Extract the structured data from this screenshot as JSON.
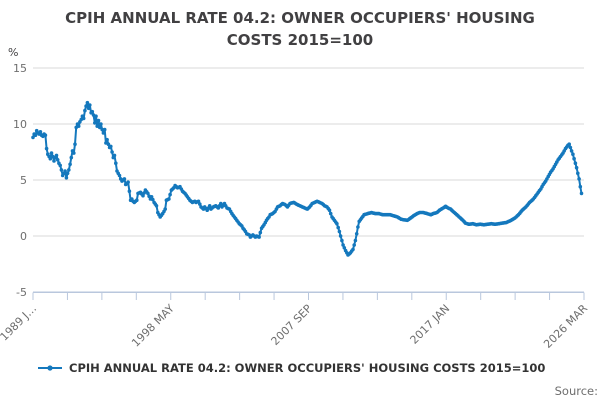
{
  "title": "CPIH ANNUAL RATE 04.2: OWNER OCCUPIERS' HOUSING COSTS 2015=100",
  "y_axis_unit_label": "%",
  "legend": {
    "label": "CPIH ANNUAL RATE 04.2: OWNER OCCUPIERS' HOUSING COSTS 2015=100"
  },
  "source_label": "Source:",
  "colors": {
    "series": "#1478bd",
    "gridline": "#d9d9d9",
    "axis": "#b9c7dd",
    "title_text": "#414042",
    "tick_text": "#6e6e6e",
    "legend_text": "#333333"
  },
  "chart_data": {
    "type": "line",
    "title": "CPIH ANNUAL RATE 04.2: OWNER OCCUPIERS' HOUSING COSTS 2015=100",
    "xlabel": "",
    "ylabel": "%",
    "ylim": [
      -5,
      15
    ],
    "yticks": [
      15,
      10,
      5,
      0,
      -5
    ],
    "grid": "horizontal",
    "legend_position": "bottom-left",
    "x_domain_months": [
      "1989-01",
      "2026-03"
    ],
    "x_tick_count": 17,
    "x_labeled_tick_indices": [
      0,
      4,
      8,
      12,
      16
    ],
    "xtick_labels": [
      "1989 J…",
      "1998 MAY",
      "2007 SEP",
      "2017 JAN",
      "2026 MAR"
    ],
    "series": [
      {
        "name": "CPIH ANNUAL RATE 04.2: OWNER OCCUPIERS' HOUSING COSTS 2015=100",
        "frequency": "monthly",
        "points": [
          [
            "1989-01",
            8.8
          ],
          [
            "1989-02",
            9.1
          ],
          [
            "1989-03",
            9.0
          ],
          [
            "1989-04",
            9.4
          ],
          [
            "1989-05",
            9.2
          ],
          [
            "1989-06",
            9.1
          ],
          [
            "1989-07",
            9.3
          ],
          [
            "1989-08",
            9.0
          ],
          [
            "1989-09",
            8.9
          ],
          [
            "1989-10",
            9.1
          ],
          [
            "1989-11",
            9.0
          ],
          [
            "1989-12",
            7.8
          ],
          [
            "1990-01",
            7.3
          ],
          [
            "1990-02",
            7.1
          ],
          [
            "1990-03",
            6.9
          ],
          [
            "1990-04",
            7.4
          ],
          [
            "1990-05",
            7.1
          ],
          [
            "1990-06",
            6.7
          ],
          [
            "1990-07",
            7.0
          ],
          [
            "1990-08",
            7.2
          ],
          [
            "1990-09",
            6.8
          ],
          [
            "1990-10",
            6.5
          ],
          [
            "1990-11",
            6.3
          ],
          [
            "1990-12",
            5.9
          ],
          [
            "1991-01",
            5.4
          ],
          [
            "1991-02",
            5.6
          ],
          [
            "1991-03",
            5.8
          ],
          [
            "1991-04",
            5.2
          ],
          [
            "1991-05",
            5.6
          ],
          [
            "1991-06",
            5.9
          ],
          [
            "1991-07",
            6.4
          ],
          [
            "1991-08",
            7.0
          ],
          [
            "1991-09",
            7.6
          ],
          [
            "1991-10",
            7.4
          ],
          [
            "1991-11",
            8.2
          ],
          [
            "1991-12",
            9.7
          ],
          [
            "1992-01",
            10.0
          ],
          [
            "1992-02",
            9.8
          ],
          [
            "1992-03",
            10.2
          ],
          [
            "1992-04",
            10.4
          ],
          [
            "1992-05",
            10.7
          ],
          [
            "1992-06",
            10.5
          ],
          [
            "1992-07",
            11.2
          ],
          [
            "1992-08",
            11.6
          ],
          [
            "1992-09",
            11.9
          ],
          [
            "1992-10",
            11.4
          ],
          [
            "1992-11",
            11.7
          ],
          [
            "1992-12",
            11.0
          ],
          [
            "1993-01",
            11.1
          ],
          [
            "1993-02",
            10.8
          ],
          [
            "1993-03",
            10.1
          ],
          [
            "1993-04",
            10.7
          ],
          [
            "1993-05",
            9.8
          ],
          [
            "1993-06",
            10.3
          ],
          [
            "1993-07",
            9.7
          ],
          [
            "1993-08",
            10.0
          ],
          [
            "1993-09",
            9.5
          ],
          [
            "1993-10",
            9.2
          ],
          [
            "1993-11",
            9.5
          ],
          [
            "1993-12",
            8.3
          ],
          [
            "1994-01",
            8.6
          ],
          [
            "1994-02",
            8.2
          ],
          [
            "1994-03",
            7.9
          ],
          [
            "1994-04",
            8.0
          ],
          [
            "1994-05",
            7.5
          ],
          [
            "1994-06",
            7.0
          ],
          [
            "1994-07",
            7.2
          ],
          [
            "1994-08",
            6.5
          ],
          [
            "1994-09",
            5.8
          ],
          [
            "1994-10",
            5.6
          ],
          [
            "1994-11",
            5.4
          ],
          [
            "1994-12",
            5.1
          ],
          [
            "1995-01",
            4.9
          ],
          [
            "1995-02",
            5.0
          ],
          [
            "1995-03",
            5.1
          ],
          [
            "1995-04",
            4.6
          ],
          [
            "1995-05",
            4.7
          ],
          [
            "1995-06",
            4.8
          ],
          [
            "1995-07",
            4.0
          ],
          [
            "1995-08",
            3.2
          ],
          [
            "1995-09",
            3.3
          ],
          [
            "1995-10",
            3.1
          ],
          [
            "1995-11",
            3.0
          ],
          [
            "1995-12",
            3.1
          ],
          [
            "1996-01",
            3.2
          ],
          [
            "1996-02",
            3.8
          ],
          [
            "1996-04",
            3.9
          ],
          [
            "1996-06",
            3.6
          ],
          [
            "1996-08",
            4.1
          ],
          [
            "1996-10",
            3.8
          ],
          [
            "1996-12",
            3.3
          ],
          [
            "1997-01",
            3.5
          ],
          [
            "1997-03",
            3.0
          ],
          [
            "1997-05",
            2.7
          ],
          [
            "1997-06",
            2.1
          ],
          [
            "1997-08",
            1.7
          ],
          [
            "1997-10",
            2.0
          ],
          [
            "1997-12",
            2.4
          ],
          [
            "1998-01",
            3.2
          ],
          [
            "1998-03",
            3.3
          ],
          [
            "1998-05",
            4.1
          ],
          [
            "1998-07",
            4.3
          ],
          [
            "1998-08",
            4.5
          ],
          [
            "1998-10",
            4.3
          ],
          [
            "1998-12",
            4.4
          ],
          [
            "1999-01",
            4.2
          ],
          [
            "1999-02",
            4.0
          ],
          [
            "1999-04",
            3.8
          ],
          [
            "1999-06",
            3.5
          ],
          [
            "1999-08",
            3.2
          ],
          [
            "1999-10",
            3.0
          ],
          [
            "1999-12",
            3.1
          ],
          [
            "2000-01",
            3.0
          ],
          [
            "2000-03",
            3.1
          ],
          [
            "2000-05",
            2.6
          ],
          [
            "2000-07",
            2.4
          ],
          [
            "2000-08",
            2.6
          ],
          [
            "2000-10",
            2.3
          ],
          [
            "2000-12",
            2.7
          ],
          [
            "2001-01",
            2.4
          ],
          [
            "2001-03",
            2.6
          ],
          [
            "2001-05",
            2.7
          ],
          [
            "2001-07",
            2.5
          ],
          [
            "2001-09",
            2.9
          ],
          [
            "2001-10",
            2.6
          ],
          [
            "2001-12",
            2.9
          ],
          [
            "2002-02",
            2.5
          ],
          [
            "2002-04",
            2.4
          ],
          [
            "2002-06",
            2.0
          ],
          [
            "2002-08",
            1.7
          ],
          [
            "2002-10",
            1.4
          ],
          [
            "2002-12",
            1.1
          ],
          [
            "2003-02",
            0.9
          ],
          [
            "2003-03",
            0.7
          ],
          [
            "2003-05",
            0.4
          ],
          [
            "2003-06",
            0.2
          ],
          [
            "2003-08",
            0.1
          ],
          [
            "2003-09",
            -0.1
          ],
          [
            "2003-11",
            0.1
          ],
          [
            "2004-01",
            -0.1
          ],
          [
            "2004-02",
            0.0
          ],
          [
            "2004-04",
            -0.1
          ],
          [
            "2004-06",
            0.7
          ],
          [
            "2004-08",
            1.0
          ],
          [
            "2004-10",
            1.4
          ],
          [
            "2004-12",
            1.7
          ],
          [
            "2005-01",
            1.9
          ],
          [
            "2005-03",
            2.0
          ],
          [
            "2005-05",
            2.2
          ],
          [
            "2005-07",
            2.6
          ],
          [
            "2005-09",
            2.7
          ],
          [
            "2005-11",
            2.9
          ],
          [
            "2006-01",
            2.8
          ],
          [
            "2006-03",
            2.6
          ],
          [
            "2006-05",
            2.9
          ],
          [
            "2006-08",
            3.0
          ],
          [
            "2006-11",
            2.8
          ],
          [
            "2007-01",
            2.7
          ],
          [
            "2007-03",
            2.6
          ],
          [
            "2007-05",
            2.5
          ],
          [
            "2007-07",
            2.4
          ],
          [
            "2007-09",
            2.6
          ],
          [
            "2007-11",
            2.9
          ],
          [
            "2008-01",
            3.0
          ],
          [
            "2008-03",
            3.1
          ],
          [
            "2008-05",
            3.0
          ],
          [
            "2008-07",
            2.9
          ],
          [
            "2008-09",
            2.7
          ],
          [
            "2008-11",
            2.6
          ],
          [
            "2009-01",
            2.3
          ],
          [
            "2009-03",
            1.7
          ],
          [
            "2009-05",
            1.4
          ],
          [
            "2009-07",
            1.1
          ],
          [
            "2009-09",
            0.4
          ],
          [
            "2009-11",
            -0.4
          ],
          [
            "2009-12",
            -0.8
          ],
          [
            "2010-02",
            -1.3
          ],
          [
            "2010-04",
            -1.7
          ],
          [
            "2010-06",
            -1.5
          ],
          [
            "2010-08",
            -1.2
          ],
          [
            "2010-09",
            -0.8
          ],
          [
            "2010-10",
            -0.4
          ],
          [
            "2010-12",
            0.8
          ],
          [
            "2011-01",
            1.3
          ],
          [
            "2011-03",
            1.6
          ],
          [
            "2011-05",
            1.9
          ],
          [
            "2011-08",
            2.0
          ],
          [
            "2011-11",
            2.1
          ],
          [
            "2012-02",
            2.0
          ],
          [
            "2012-05",
            2.0
          ],
          [
            "2012-08",
            1.9
          ],
          [
            "2012-11",
            1.9
          ],
          [
            "2013-02",
            1.9
          ],
          [
            "2013-05",
            1.8
          ],
          [
            "2013-08",
            1.7
          ],
          [
            "2013-11",
            1.5
          ],
          [
            "2014-01",
            1.45
          ],
          [
            "2014-04",
            1.4
          ],
          [
            "2014-06",
            1.55
          ],
          [
            "2014-09",
            1.8
          ],
          [
            "2014-12",
            2.0
          ],
          [
            "2015-02",
            2.1
          ],
          [
            "2015-05",
            2.1
          ],
          [
            "2015-08",
            2.0
          ],
          [
            "2015-11",
            1.9
          ],
          [
            "2016-01",
            2.0
          ],
          [
            "2016-04",
            2.1
          ],
          [
            "2016-06",
            2.3
          ],
          [
            "2016-09",
            2.5
          ],
          [
            "2016-11",
            2.65
          ],
          [
            "2017-01",
            2.5
          ],
          [
            "2017-03",
            2.4
          ],
          [
            "2017-05",
            2.2
          ],
          [
            "2017-07",
            2.0
          ],
          [
            "2017-09",
            1.8
          ],
          [
            "2017-11",
            1.6
          ],
          [
            "2018-01",
            1.4
          ],
          [
            "2018-03",
            1.15
          ],
          [
            "2018-06",
            1.05
          ],
          [
            "2018-09",
            1.1
          ],
          [
            "2018-12",
            1.0
          ],
          [
            "2019-03",
            1.05
          ],
          [
            "2019-06",
            1.0
          ],
          [
            "2019-09",
            1.05
          ],
          [
            "2019-12",
            1.1
          ],
          [
            "2020-03",
            1.05
          ],
          [
            "2020-06",
            1.1
          ],
          [
            "2020-09",
            1.15
          ],
          [
            "2020-12",
            1.2
          ],
          [
            "2021-02",
            1.3
          ],
          [
            "2021-04",
            1.4
          ],
          [
            "2021-07",
            1.6
          ],
          [
            "2021-10",
            1.9
          ],
          [
            "2022-01",
            2.3
          ],
          [
            "2022-04",
            2.6
          ],
          [
            "2022-07",
            3.0
          ],
          [
            "2022-10",
            3.3
          ],
          [
            "2022-12",
            3.6
          ],
          [
            "2023-02",
            3.9
          ],
          [
            "2023-04",
            4.2
          ],
          [
            "2023-06",
            4.6
          ],
          [
            "2023-08",
            4.9
          ],
          [
            "2023-10",
            5.3
          ],
          [
            "2023-12",
            5.7
          ],
          [
            "2024-02",
            6.0
          ],
          [
            "2024-04",
            6.4
          ],
          [
            "2024-06",
            6.8
          ],
          [
            "2024-08",
            7.1
          ],
          [
            "2024-10",
            7.4
          ],
          [
            "2024-12",
            7.8
          ],
          [
            "2025-02",
            8.1
          ],
          [
            "2025-03",
            8.2
          ],
          [
            "2025-04",
            7.9
          ],
          [
            "2025-05",
            7.6
          ],
          [
            "2025-06",
            7.3
          ],
          [
            "2025-07",
            6.9
          ],
          [
            "2025-08",
            6.5
          ],
          [
            "2025-09",
            6.1
          ],
          [
            "2025-10",
            5.6
          ],
          [
            "2025-11",
            5.1
          ],
          [
            "2025-12",
            4.4
          ],
          [
            "2026-01",
            3.8
          ]
        ]
      }
    ]
  }
}
